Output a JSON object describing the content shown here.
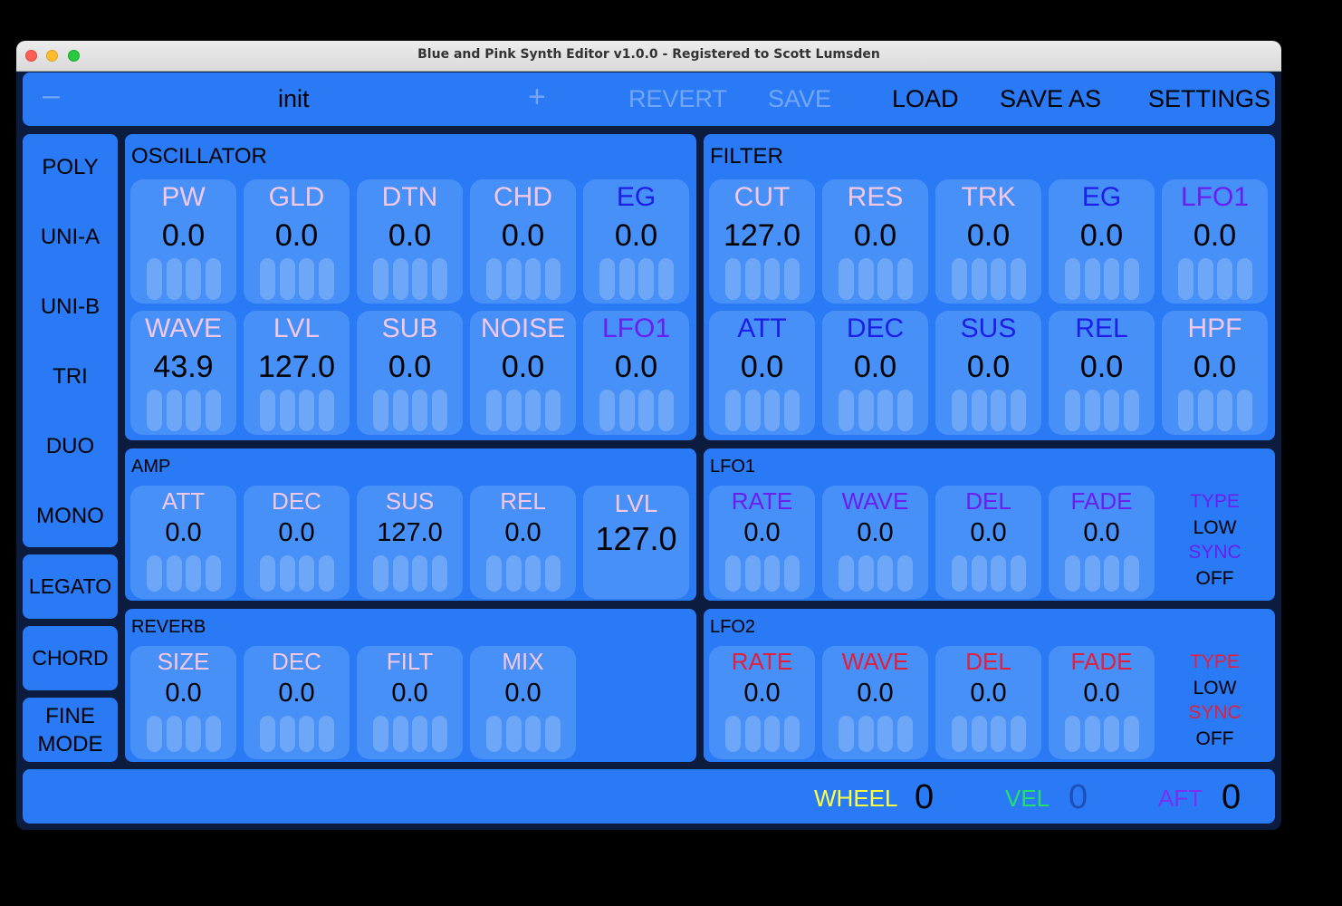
{
  "window": {
    "title": "Blue and Pink Synth Editor v1.0.0 - Registered to Scott Lumsden"
  },
  "topbar": {
    "prev_label": "–",
    "patch_name": "init",
    "next_label": "+",
    "revert_label": "REVERT",
    "save_label": "SAVE",
    "load_label": "LOAD",
    "save_as_label": "SAVE AS",
    "settings_label": "SETTINGS"
  },
  "modes": [
    "POLY",
    "UNI-A",
    "UNI-B",
    "TRI",
    "DUO",
    "MONO"
  ],
  "sidebar": {
    "legato": "LEGATO",
    "chord": "CHORD",
    "fine_mode_1": "FINE",
    "fine_mode_2": "MODE"
  },
  "colors": {
    "normal": "#f3c8e6",
    "accent_blue": "#1f1ee6",
    "accent_purple": "#6a1ff0",
    "accent_red": "#e21f3d",
    "wheel": "#ffff40",
    "vel": "#22e06a",
    "aft": "#7a2ff2"
  },
  "oscillator": {
    "title": "OSCILLATOR",
    "row1": [
      {
        "label": "PW",
        "value": "0.0",
        "color": "#f3c8e6"
      },
      {
        "label": "GLD",
        "value": "0.0",
        "color": "#f3c8e6"
      },
      {
        "label": "DTN",
        "value": "0.0",
        "color": "#f3c8e6"
      },
      {
        "label": "CHD",
        "value": "0.0",
        "color": "#f3c8e6"
      },
      {
        "label": "EG",
        "value": "0.0",
        "color": "#1f1ee6"
      }
    ],
    "row2": [
      {
        "label": "WAVE",
        "value": "43.9",
        "color": "#f3c8e6"
      },
      {
        "label": "LVL",
        "value": "127.0",
        "color": "#f3c8e6"
      },
      {
        "label": "SUB",
        "value": "0.0",
        "color": "#f3c8e6"
      },
      {
        "label": "NOISE",
        "value": "0.0",
        "color": "#f3c8e6"
      },
      {
        "label": "LFO1",
        "value": "0.0",
        "color": "#6a1ff0"
      }
    ]
  },
  "filter": {
    "title": "FILTER",
    "row1": [
      {
        "label": "CUT",
        "value": "127.0",
        "color": "#f3c8e6"
      },
      {
        "label": "RES",
        "value": "0.0",
        "color": "#f3c8e6"
      },
      {
        "label": "TRK",
        "value": "0.0",
        "color": "#f3c8e6"
      },
      {
        "label": "EG",
        "value": "0.0",
        "color": "#1f1ee6"
      },
      {
        "label": "LFO1",
        "value": "0.0",
        "color": "#6a1ff0"
      }
    ],
    "row2": [
      {
        "label": "ATT",
        "value": "0.0",
        "color": "#1f1ee6"
      },
      {
        "label": "DEC",
        "value": "0.0",
        "color": "#1f1ee6"
      },
      {
        "label": "SUS",
        "value": "0.0",
        "color": "#1f1ee6"
      },
      {
        "label": "REL",
        "value": "0.0",
        "color": "#1f1ee6"
      },
      {
        "label": "HPF",
        "value": "0.0",
        "color": "#f3c8e6"
      }
    ]
  },
  "amp": {
    "title": "AMP",
    "knobs": [
      {
        "label": "ATT",
        "value": "0.0",
        "color": "#f3c8e6"
      },
      {
        "label": "DEC",
        "value": "0.0",
        "color": "#f3c8e6"
      },
      {
        "label": "SUS",
        "value": "127.0",
        "color": "#f3c8e6"
      },
      {
        "label": "REL",
        "value": "0.0",
        "color": "#f3c8e6"
      }
    ],
    "level": {
      "label": "LVL",
      "value": "127.0",
      "color": "#f3c8e6"
    }
  },
  "lfo1": {
    "title": "LFO1",
    "knobs": [
      {
        "label": "RATE",
        "value": "0.0",
        "color": "#6a1ff0"
      },
      {
        "label": "WAVE",
        "value": "0.0",
        "color": "#6a1ff0"
      },
      {
        "label": "DEL",
        "value": "0.0",
        "color": "#6a1ff0"
      },
      {
        "label": "FADE",
        "value": "0.0",
        "color": "#6a1ff0"
      }
    ],
    "type_label": "TYPE",
    "type_value": "LOW",
    "sync_label": "SYNC",
    "sync_value": "OFF"
  },
  "reverb": {
    "title": "REVERB",
    "knobs": [
      {
        "label": "SIZE",
        "value": "0.0",
        "color": "#f3c8e6"
      },
      {
        "label": "DEC",
        "value": "0.0",
        "color": "#f3c8e6"
      },
      {
        "label": "FILT",
        "value": "0.0",
        "color": "#f3c8e6"
      },
      {
        "label": "MIX",
        "value": "0.0",
        "color": "#f3c8e6"
      }
    ]
  },
  "lfo2": {
    "title": "LFO2",
    "knobs": [
      {
        "label": "RATE",
        "value": "0.0",
        "color": "#e21f3d"
      },
      {
        "label": "WAVE",
        "value": "0.0",
        "color": "#e21f3d"
      },
      {
        "label": "DEL",
        "value": "0.0",
        "color": "#e21f3d"
      },
      {
        "label": "FADE",
        "value": "0.0",
        "color": "#e21f3d"
      }
    ],
    "type_label": "TYPE",
    "type_value": "LOW",
    "sync_label": "SYNC",
    "sync_value": "OFF"
  },
  "status": {
    "wheel_label": "WHEEL",
    "wheel_value": "0",
    "vel_label": "VEL",
    "vel_value": "0",
    "aft_label": "AFT",
    "aft_value": "0"
  }
}
